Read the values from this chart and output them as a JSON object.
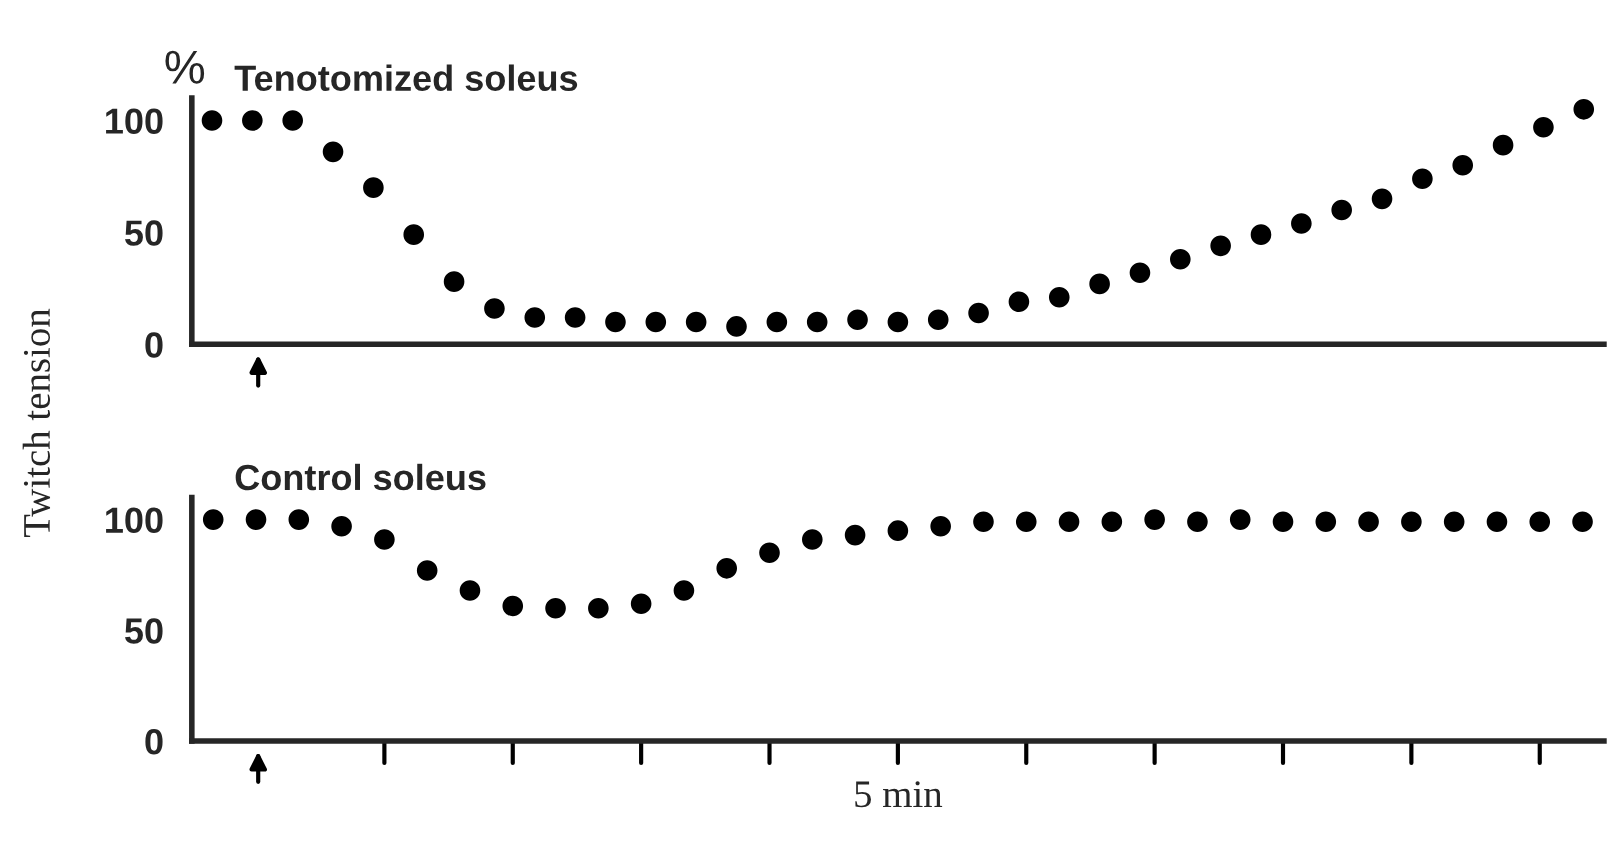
{
  "chart_data": [
    {
      "type": "scatter",
      "title": "Tenotomized soleus",
      "ylabel": "%",
      "marker": "circle",
      "grid": false,
      "tick_labels": "y",
      "ylim": [
        0,
        110
      ],
      "yticks": [
        0,
        50,
        100
      ],
      "categories": [
        null,
        null,
        null,
        null,
        null,
        null,
        null,
        null,
        null,
        null,
        null,
        null,
        null,
        null,
        null,
        null,
        null,
        null,
        null,
        null,
        null,
        null,
        null,
        null,
        null,
        null,
        null,
        null,
        null,
        null,
        null,
        null,
        null,
        null,
        null
      ],
      "series": [
        {
          "color": "#000000",
          "values": [
            100,
            100,
            100,
            86,
            70,
            49,
            28,
            16,
            12,
            12,
            10,
            10,
            10,
            8,
            10,
            10,
            11,
            10,
            11,
            14,
            19,
            21,
            27,
            32,
            38,
            44,
            49,
            54,
            60,
            65,
            74,
            80,
            89,
            97,
            105
          ]
        }
      ]
    },
    {
      "type": "scatter",
      "title": "Control soleus",
      "ylabel": "Twitch tension",
      "xlabel": "5 min",
      "marker": "circle",
      "grid": false,
      "tick_labels": "y",
      "ylim": [
        0,
        110
      ],
      "yticks": [
        0,
        50,
        100
      ],
      "categories": [
        null,
        null,
        null,
        null,
        null,
        null,
        null,
        null,
        null,
        null,
        null,
        null,
        null,
        null,
        null,
        null,
        null,
        null,
        null,
        null,
        null,
        null,
        null,
        null,
        null,
        null,
        null,
        null,
        null,
        null,
        null,
        null,
        null
      ],
      "series": [
        {
          "color": "#000000",
          "values": [
            100,
            100,
            100,
            97,
            91,
            77,
            68,
            61,
            60,
            60,
            62,
            68,
            78,
            85,
            91,
            93,
            95,
            97,
            99,
            99,
            99,
            99,
            100,
            99,
            100,
            99,
            99,
            99,
            99,
            99,
            99,
            99,
            99
          ]
        }
      ]
    }
  ]
}
